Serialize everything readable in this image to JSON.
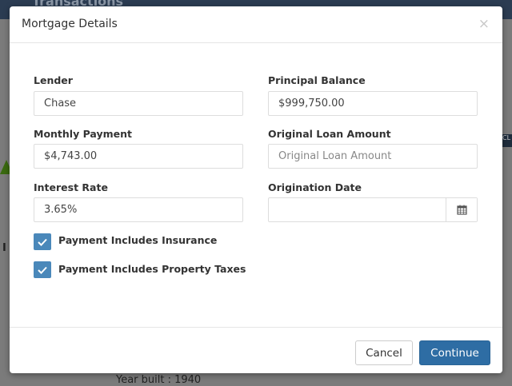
{
  "background": {
    "header_title": "Transactions",
    "year_built": "Year built : 1940",
    "fragment_i": "I",
    "fragment_cl": "CL"
  },
  "modal": {
    "title": "Mortgage Details",
    "close_glyph": "×",
    "fields": {
      "lender": {
        "label": "Lender",
        "value": "Chase",
        "placeholder": ""
      },
      "principal_balance": {
        "label": "Principal Balance",
        "value": "$999,750.00",
        "placeholder": ""
      },
      "monthly_payment": {
        "label": "Monthly Payment",
        "value": "$4,743.00",
        "placeholder": ""
      },
      "original_loan_amount": {
        "label": "Original Loan Amount",
        "value": "",
        "placeholder": "Original Loan Amount"
      },
      "interest_rate": {
        "label": "Interest Rate",
        "value": "3.65%",
        "placeholder": ""
      },
      "origination_date": {
        "label": "Origination Date",
        "value": "",
        "placeholder": "",
        "icon": "calendar-icon"
      }
    },
    "checkboxes": [
      {
        "label": "Payment Includes Insurance",
        "checked": true
      },
      {
        "label": "Payment Includes Property Taxes",
        "checked": true
      }
    ],
    "buttons": {
      "cancel": "Cancel",
      "continue": "Continue"
    },
    "colors": {
      "primary": "#2e6da4",
      "checkbox": "#4a88ba"
    }
  }
}
